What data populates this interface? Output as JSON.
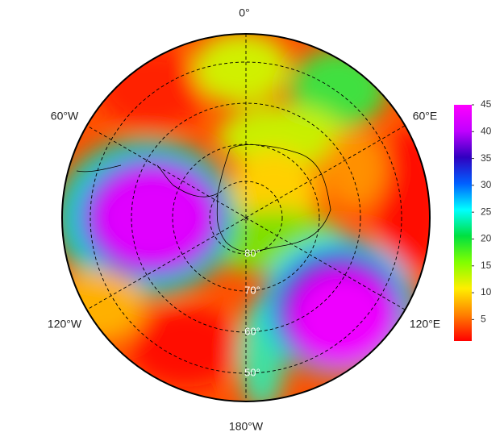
{
  "map": {
    "longitude_labels": [
      "0°",
      "60°E",
      "120°E",
      "180°W",
      "120°W",
      "60°W"
    ],
    "latitude_labels": [
      "80°",
      "70°",
      "60°",
      "50°"
    ]
  },
  "colorbar": {
    "range": [
      1,
      45
    ],
    "ticks": [
      5,
      10,
      15,
      20,
      25,
      30,
      35,
      40,
      45
    ],
    "colors": [
      "#ff0000",
      "#ff8000",
      "#ffee00",
      "#80ff00",
      "#00e040",
      "#00ffff",
      "#0060ff",
      "#3000c0",
      "#c000ff",
      "#ff00ff"
    ]
  }
}
